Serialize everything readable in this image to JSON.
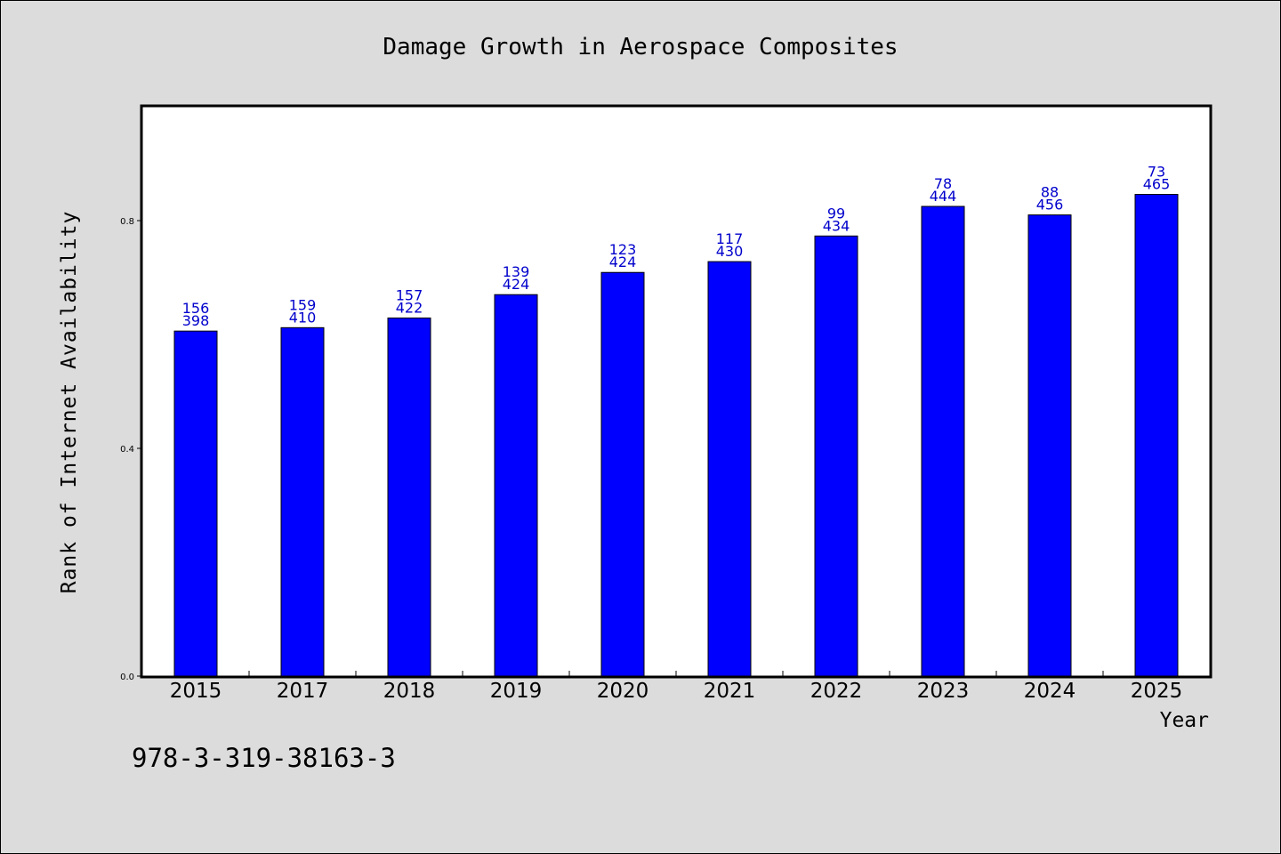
{
  "chart_data": {
    "type": "bar",
    "title": "Damage Growth in Aerospace Composites",
    "xlabel": "Year",
    "ylabel": "Rank of Internet Availability",
    "categories": [
      "2015",
      "2017",
      "2018",
      "2019",
      "2020",
      "2021",
      "2022",
      "2023",
      "2024",
      "2025"
    ],
    "values": [
      0.606,
      0.612,
      0.629,
      0.67,
      0.709,
      0.728,
      0.773,
      0.825,
      0.81,
      0.846
    ],
    "data_labels_top": [
      "156",
      "159",
      "157",
      "139",
      "123",
      "117",
      "99",
      "78",
      "88",
      "73"
    ],
    "data_labels_bottom": [
      "398",
      "410",
      "422",
      "424",
      "424",
      "430",
      "434",
      "444",
      "456",
      "465"
    ],
    "ylim": [
      0,
      1.0
    ],
    "yticks": [
      0.0,
      0.4,
      0.8
    ],
    "ytick_labels": [
      "0.0",
      "0.4",
      "0.8"
    ],
    "bar_color": "#0000ff",
    "label_color": "#0000cc",
    "grid": false,
    "legend": "none"
  },
  "footer_text": "978-3-319-38163-3"
}
